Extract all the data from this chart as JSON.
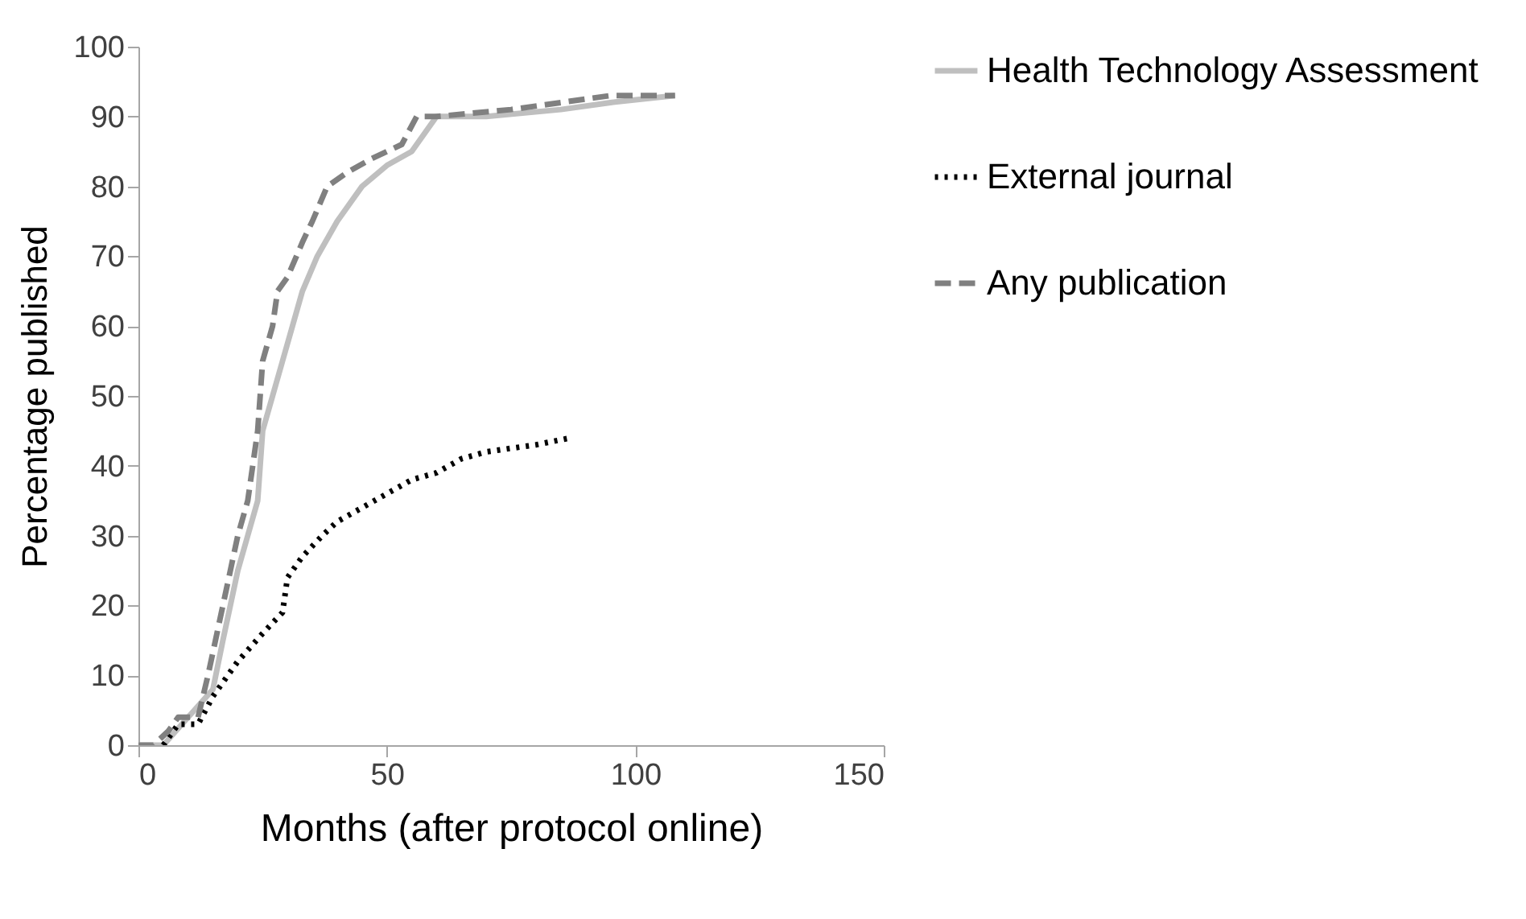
{
  "chart_data": {
    "type": "line",
    "xlabel": "Months (after protocol online)",
    "ylabel": "Percentage published",
    "xlim": [
      0,
      150
    ],
    "xticks": [
      0,
      50,
      100,
      150
    ],
    "ylim": [
      0,
      100
    ],
    "yticks": [
      0,
      10,
      20,
      30,
      40,
      50,
      60,
      70,
      80,
      90,
      100
    ],
    "grid": false,
    "legend": "right",
    "marker": "none",
    "series": [
      {
        "name": "Health Technology Assessment",
        "color": "#bfbfbf",
        "line_style": "solid",
        "x": [
          0,
          5,
          10,
          15,
          17,
          20,
          22,
          24,
          25,
          27,
          29,
          31,
          33,
          36,
          40,
          45,
          50,
          55,
          60,
          70,
          85,
          95,
          108
        ],
        "values": [
          0,
          0,
          4,
          8,
          15,
          25,
          30,
          35,
          45,
          50,
          55,
          60,
          65,
          70,
          75,
          80,
          83,
          85,
          90,
          90,
          91,
          92,
          93
        ]
      },
      {
        "name": "External journal",
        "color": "#000000",
        "line_style": "dotted",
        "x": [
          5,
          8,
          12,
          15,
          20,
          25,
          29,
          30,
          33,
          37,
          40,
          45,
          50,
          55,
          60,
          65,
          70,
          80,
          87
        ],
        "values": [
          0,
          3,
          3,
          7,
          12,
          16,
          19,
          24,
          27,
          30,
          32,
          34,
          36,
          38,
          39,
          41,
          42,
          43,
          44
        ]
      },
      {
        "name": "Any publication",
        "color": "#808080",
        "line_style": "dashed",
        "x": [
          0,
          3,
          6,
          8,
          12,
          14,
          17,
          20,
          22,
          24,
          25,
          27,
          28,
          30,
          33,
          35,
          38,
          42,
          47,
          53,
          56,
          60,
          75,
          85,
          95,
          108
        ],
        "values": [
          0,
          0,
          2,
          4,
          4,
          10,
          20,
          30,
          35,
          45,
          55,
          60,
          65,
          67,
          72,
          75,
          80,
          82,
          84,
          86,
          90,
          90,
          91,
          92,
          93,
          93
        ]
      }
    ]
  }
}
